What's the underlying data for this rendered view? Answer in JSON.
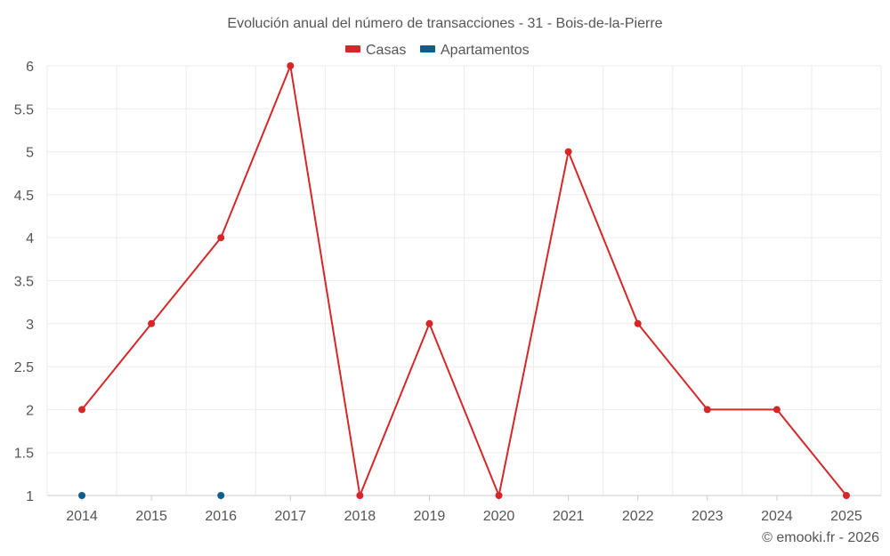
{
  "chart_data": {
    "type": "line",
    "title": "Evolución anual del número de transacciones - 31 - Bois-de-la-Pierre",
    "xlabel": "",
    "ylabel": "",
    "categories": [
      "2014",
      "2015",
      "2016",
      "2017",
      "2018",
      "2019",
      "2020",
      "2021",
      "2022",
      "2023",
      "2024",
      "2025"
    ],
    "ylim": [
      1,
      6
    ],
    "yticks": [
      "1",
      "1.5",
      "2",
      "2.5",
      "3",
      "3.5",
      "4",
      "4.5",
      "5",
      "5.5",
      "6"
    ],
    "legend_position": "top-center",
    "grid": true,
    "series": [
      {
        "name": "Casas",
        "color": "#d62728",
        "values": [
          2,
          3,
          4,
          6,
          1,
          3,
          1,
          5,
          3,
          2,
          2,
          1
        ]
      },
      {
        "name": "Apartamentos",
        "color": "#0b5f8f",
        "values": [
          1,
          null,
          1,
          null,
          null,
          null,
          null,
          null,
          null,
          null,
          null,
          null
        ]
      }
    ]
  },
  "credit": "© emooki.fr - 2026"
}
